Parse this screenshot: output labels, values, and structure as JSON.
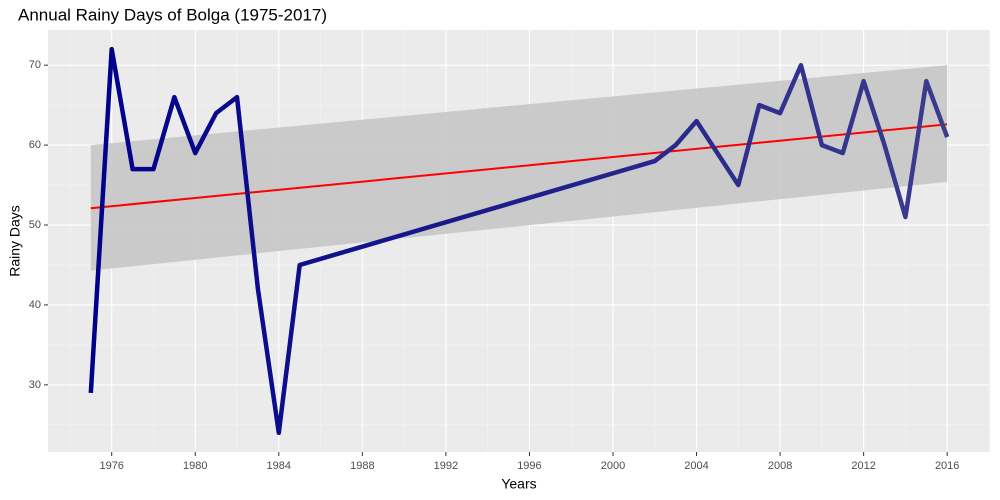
{
  "chart_data": {
    "type": "line",
    "title": "Annual Rainy Days of Bolga (1975-2017)",
    "x_label": "Years",
    "y_label": "Rainy Days",
    "x": [
      1975,
      1976,
      1977,
      1978,
      1979,
      1980,
      1981,
      1982,
      1983,
      1984,
      1985,
      2002,
      2003,
      2004,
      2005,
      2006,
      2007,
      2008,
      2009,
      2010,
      2011,
      2012,
      2013,
      2014,
      2015,
      2016
    ],
    "series": [
      {
        "name": "Rainy Days",
        "colors": [
          "#00008b",
          "#3c3c8e"
        ],
        "values": [
          29,
          72,
          57,
          57,
          66,
          59,
          64,
          66,
          42,
          24,
          45,
          58,
          60,
          63,
          59,
          55,
          65,
          64,
          70,
          60,
          59,
          68,
          60,
          51,
          68,
          61
        ]
      }
    ],
    "trend": {
      "color": "#ff0000",
      "band_color": "#c6c6c6",
      "x": [
        1975,
        2016
      ],
      "values": [
        52.1,
        62.6
      ],
      "lower": [
        44.3,
        55.4
      ],
      "upper": [
        60.0,
        70.0
      ]
    },
    "xlim": [
      1972.95,
      2018.05
    ],
    "ylim": [
      21.6,
      74.4
    ],
    "xticks": [
      1976,
      1980,
      1984,
      1988,
      1992,
      1996,
      2000,
      2004,
      2008,
      2012,
      2016
    ],
    "yticks": [
      30,
      40,
      50,
      60,
      70
    ],
    "grid": true
  }
}
